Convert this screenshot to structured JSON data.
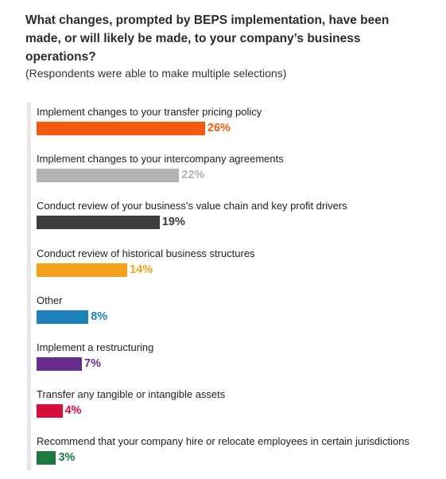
{
  "chart_data": {
    "type": "bar",
    "orientation": "horizontal",
    "title": "What changes, prompted by BEPS implementation, have been made, or will likely be made, to your company’s business operations?",
    "subtitle": "(Respondents were able to make multiple selections)",
    "categories": [
      "Implement changes to your transfer pricing policy",
      "Implement changes to your intercompany agreements",
      "Conduct review of your business’s value chain and key profit drivers",
      "Conduct review of historical business structures",
      "Other",
      "Implement a restructuring",
      "Transfer any tangible or intangible assets",
      "Recommend that your company hire or relocate employees in certain jurisdictions"
    ],
    "values": [
      26,
      22,
      19,
      14,
      8,
      7,
      4,
      3
    ],
    "value_labels": [
      "26%",
      "22%",
      "19%",
      "14%",
      "8%",
      "7%",
      "4%",
      "3%"
    ],
    "colors": [
      "#f15a0f",
      "#b3b3b3",
      "#3c3c3c",
      "#f6a01a",
      "#1b82b9",
      "#6a2c8d",
      "#d80d39",
      "#1c7a3d"
    ],
    "xlim": [
      0,
      100
    ],
    "grid": false,
    "legend": "none"
  }
}
